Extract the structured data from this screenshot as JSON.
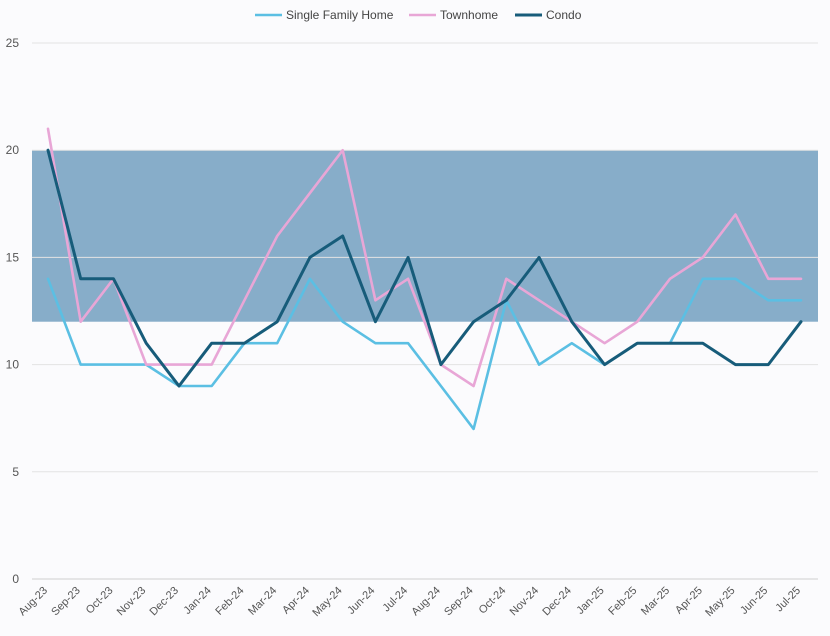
{
  "chart_data": {
    "type": "line",
    "categories": [
      "Aug-23",
      "Sep-23",
      "Oct-23",
      "Nov-23",
      "Dec-23",
      "Jan-24",
      "Feb-24",
      "Mar-24",
      "Apr-24",
      "May-24",
      "Jun-24",
      "Jul-24",
      "Aug-24",
      "Sep-24",
      "Oct-24",
      "Nov-24",
      "Dec-24",
      "Jan-25",
      "Feb-25",
      "Mar-25",
      "Apr-25",
      "May-25",
      "Jun-25",
      "Jul-25"
    ],
    "series": [
      {
        "name": "Single Family Home",
        "color": "#5bbfe3",
        "values": [
          14,
          10,
          10,
          10,
          9,
          9,
          11,
          11,
          14,
          12,
          11,
          11,
          9,
          7,
          13,
          10,
          11,
          10,
          11,
          11,
          14,
          14,
          13,
          13
        ]
      },
      {
        "name": "Townhome",
        "color": "#e8a6d6",
        "values": [
          21,
          12,
          14,
          10,
          10,
          10,
          13,
          16,
          18,
          20,
          13,
          14,
          10,
          9,
          14,
          13,
          12,
          11,
          12,
          14,
          15,
          17,
          14,
          14
        ]
      },
      {
        "name": "Condo",
        "color": "#175c7a",
        "values": [
          20,
          14,
          14,
          11,
          9,
          11,
          11,
          12,
          15,
          16,
          12,
          15,
          10,
          12,
          13,
          15,
          12,
          10,
          11,
          11,
          11,
          10,
          10,
          12
        ]
      }
    ],
    "band": {
      "from": 12,
      "to": 20,
      "color": "#87adc9"
    },
    "ylim": [
      0,
      25
    ],
    "yticks": [
      0,
      5,
      10,
      15,
      20,
      25
    ],
    "grid": true,
    "legend_position": "top-center"
  }
}
